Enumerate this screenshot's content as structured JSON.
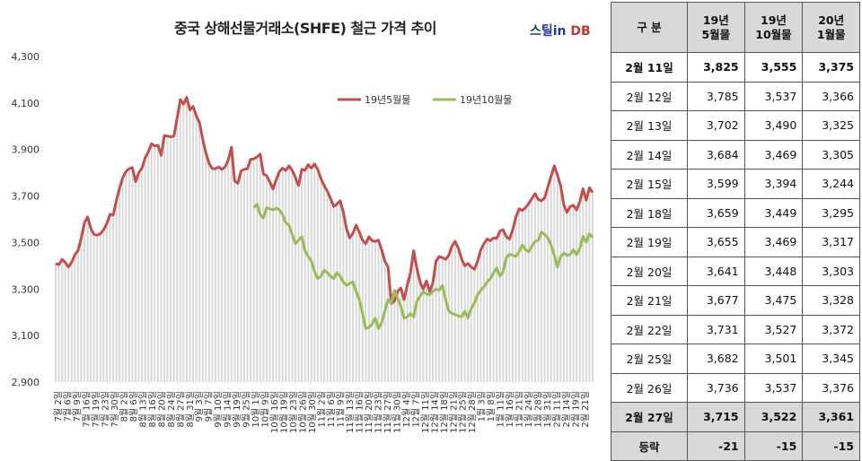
{
  "header": {
    "title": "중국 상해선물거래소(SHFE)  철근 가격 추이",
    "logo_part1": "스틸in",
    "logo_part2": "DB"
  },
  "colors": {
    "series1": "#c0504d",
    "series2": "#9bbb59",
    "bars": "#d9d9d9"
  },
  "chart_data": {
    "type": "line",
    "title": "중국 상해선물거래소(SHFE)  철근 가격 추이",
    "ylim": [
      2900,
      4300
    ],
    "yticks": [
      2900,
      3100,
      3300,
      3500,
      3700,
      3900,
      4100,
      4300
    ],
    "ytick_labels": [
      "2,900",
      "3,100",
      "3,300",
      "3,500",
      "3,700",
      "3,900",
      "4,100",
      "4,300"
    ],
    "grid": false,
    "legend": "top-right",
    "xtick_labels": [
      "7월 2일",
      "7월 6일",
      "7월 9일",
      "7월 16일",
      "7월 19일",
      "7월 23일",
      "7월 30일",
      "8월 2일",
      "8월 6일",
      "8월 13일",
      "8월 16일",
      "8월 20일",
      "8월 24일",
      "8월 27일",
      "8월 31일",
      "9월 3일",
      "9월 7일",
      "9월 10일",
      "9월 14일",
      "9월 19일",
      "9월 25일",
      "10월 1일",
      "10월 9일",
      "10월 16일",
      "10월 19일",
      "10월 23일",
      "10월 26일",
      "10월 30일",
      "11월 2일",
      "11월 6일",
      "11월 9일",
      "11월 13일",
      "11월 16일",
      "11월 20일",
      "11월 23일",
      "11월 27일",
      "11월 30일",
      "12월 4일",
      "12월 7일",
      "12월 11일",
      "12월 14일",
      "12월 18일",
      "12월 21일",
      "12월 25일",
      "12월 28일",
      "1월 3일",
      "1월 8일",
      "1월 11일",
      "1월 16일",
      "1월 21일",
      "1월 24일",
      "1월 28일",
      "1월 31일",
      "2월 11일",
      "2월 14일",
      "2월 19일",
      "2월 21일"
    ],
    "series": [
      {
        "name": "19년5월물",
        "values": [
          3410,
          3405,
          3428,
          3415,
          3395,
          3415,
          3448,
          3465,
          3520,
          3585,
          3610,
          3560,
          3535,
          3532,
          3538,
          3555,
          3582,
          3622,
          3618,
          3680,
          3735,
          3780,
          3805,
          3818,
          3822,
          3762,
          3800,
          3820,
          3865,
          3890,
          3925,
          3915,
          3918,
          3875,
          3960,
          3958,
          3955,
          3958,
          4035,
          4115,
          4095,
          4125,
          4070,
          4085,
          4045,
          4015,
          3945,
          3885,
          3840,
          3818,
          3818,
          3825,
          3815,
          3825,
          3855,
          3910,
          3765,
          3755,
          3808,
          3815,
          3818,
          3858,
          3860,
          3868,
          3880,
          3795,
          3788,
          3760,
          3730,
          3770,
          3805,
          3820,
          3810,
          3830,
          3810,
          3780,
          3745,
          3815,
          3810,
          3835,
          3820,
          3838,
          3815,
          3775,
          3745,
          3720,
          3690,
          3655,
          3665,
          3680,
          3630,
          3560,
          3520,
          3540,
          3575,
          3545,
          3510,
          3495,
          3525,
          3508,
          3505,
          3510,
          3468,
          3420,
          3395,
          3238,
          3248,
          3290,
          3305,
          3255,
          3315,
          3370,
          3465,
          3390,
          3330,
          3300,
          3335,
          3290,
          3325,
          3420,
          3440,
          3435,
          3428,
          3445,
          3485,
          3505,
          3475,
          3430,
          3400,
          3410,
          3395,
          3385,
          3420,
          3468,
          3495,
          3515,
          3508,
          3520,
          3518,
          3550,
          3555,
          3525,
          3515,
          3555,
          3610,
          3645,
          3638,
          3650,
          3668,
          3690,
          3710,
          3685,
          3680,
          3692,
          3740,
          3785,
          3830,
          3790,
          3745,
          3660,
          3630,
          3655,
          3660,
          3640,
          3677,
          3731,
          3682,
          3736,
          3715
        ]
      },
      {
        "name": "19년10월물",
        "values": [
          3650,
          3665,
          3620,
          3605,
          3650,
          3645,
          3640,
          3648,
          3640,
          3620,
          3585,
          3575,
          3535,
          3495,
          3510,
          3525,
          3465,
          3440,
          3420,
          3375,
          3345,
          3355,
          3380,
          3370,
          3355,
          3345,
          3370,
          3355,
          3330,
          3315,
          3325,
          3330,
          3290,
          3255,
          3195,
          3130,
          3135,
          3150,
          3175,
          3130,
          3155,
          3205,
          3255,
          3240,
          3295,
          3260,
          3225,
          3175,
          3180,
          3195,
          3180,
          3245,
          3270,
          3288,
          3280,
          3275,
          3290,
          3300,
          3295,
          3315,
          3255,
          3205,
          3195,
          3190,
          3185,
          3180,
          3205,
          3175,
          3215,
          3240,
          3275,
          3295,
          3310,
          3330,
          3345,
          3370,
          3390,
          3355,
          3375,
          3435,
          3450,
          3445,
          3440,
          3460,
          3490,
          3470,
          3460,
          3485,
          3505,
          3510,
          3545,
          3535,
          3520,
          3490,
          3445,
          3395,
          3440,
          3455,
          3445,
          3449,
          3469,
          3448,
          3475,
          3527,
          3501,
          3537,
          3522
        ]
      }
    ]
  },
  "table": {
    "headers": [
      {
        "l1": "구  분",
        "l2": ""
      },
      {
        "l1": "19년",
        "l2": "5월물"
      },
      {
        "l1": "19년",
        "l2": "10월물"
      },
      {
        "l1": "20년",
        "l2": "1월물"
      }
    ],
    "rows": [
      {
        "date": "2월 11일",
        "v1": "3,825",
        "v2": "3,555",
        "v3": "3,375"
      },
      {
        "date": "2월 12일",
        "v1": "3,785",
        "v2": "3,537",
        "v3": "3,366"
      },
      {
        "date": "2월 13일",
        "v1": "3,702",
        "v2": "3,490",
        "v3": "3,325"
      },
      {
        "date": "2월 14일",
        "v1": "3,684",
        "v2": "3,469",
        "v3": "3,305"
      },
      {
        "date": "2월 15일",
        "v1": "3,599",
        "v2": "3,394",
        "v3": "3,244"
      },
      {
        "date": "2월 18일",
        "v1": "3,659",
        "v2": "3,449",
        "v3": "3,295"
      },
      {
        "date": "2월 19일",
        "v1": "3,655",
        "v2": "3,469",
        "v3": "3,317"
      },
      {
        "date": "2월 20일",
        "v1": "3,641",
        "v2": "3,448",
        "v3": "3,303"
      },
      {
        "date": "2월 21일",
        "v1": "3,677",
        "v2": "3,475",
        "v3": "3,328"
      },
      {
        "date": "2월 22일",
        "v1": "3,731",
        "v2": "3,527",
        "v3": "3,372"
      },
      {
        "date": "2월 25일",
        "v1": "3,682",
        "v2": "3,501",
        "v3": "3,345"
      },
      {
        "date": "2월 26일",
        "v1": "3,736",
        "v2": "3,537",
        "v3": "3,376"
      },
      {
        "date": "2월 27일",
        "v1": "3,715",
        "v2": "3,522",
        "v3": "3,361"
      }
    ],
    "change": {
      "label": "등락",
      "v1": "-21",
      "v2": "-15",
      "v3": "-15"
    }
  }
}
